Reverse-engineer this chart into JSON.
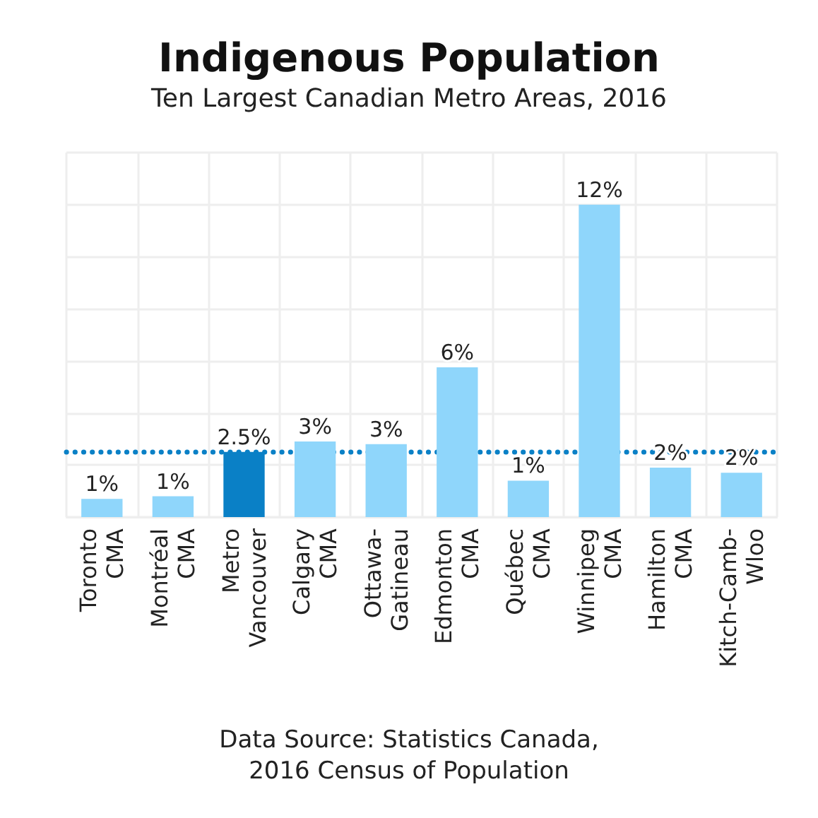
{
  "chart_data": {
    "type": "bar",
    "title": "Indigenous Population",
    "subtitle": "Ten Largest Canadian Metro Areas, 2016",
    "categories": [
      "Toronto\nCMA",
      "Montréal\nCMA",
      "Metro\nVancouver",
      "Calgary\nCMA",
      "Ottawa-\nGatineau",
      "Edmonton\nCMA",
      "Québec\nCMA",
      "Winnipeg\nCMA",
      "Hamilton\nCMA",
      "Kitch-Camb-\nWloo"
    ],
    "values": [
      0.7,
      0.8,
      2.5,
      2.9,
      2.8,
      5.75,
      1.4,
      12,
      1.9,
      1.7
    ],
    "colors": [
      "#8fd6fb",
      "#8fd6fb",
      "#0a80c6",
      "#8fd6fb",
      "#8fd6fb",
      "#8fd6fb",
      "#8fd6fb",
      "#8fd6fb",
      "#8fd6fb",
      "#8fd6fb"
    ],
    "value_labels": [
      "1%",
      "1%",
      "2.5%",
      "3%",
      "3%",
      "6%",
      "1%",
      "12%",
      "2%",
      "2%"
    ],
    "ylim": [
      0,
      14
    ],
    "yticks": [
      {
        "value": 0,
        "label": null
      },
      {
        "value": 2,
        "label": null
      },
      {
        "value": 4,
        "label": null
      },
      {
        "value": 6,
        "label": null
      },
      {
        "value": 8,
        "label": null
      },
      {
        "value": 10,
        "label": null
      },
      {
        "value": 12,
        "label": null
      },
      {
        "value": 14,
        "label": null
      }
    ],
    "grid": true,
    "ref_lines": [
      {
        "axis": "y",
        "value": 2.5,
        "color": "#0a80c6",
        "line_style": "dotted"
      }
    ],
    "annotations": [
      "Data Source: Statistics Canada,\n2016 Census of Population"
    ]
  }
}
